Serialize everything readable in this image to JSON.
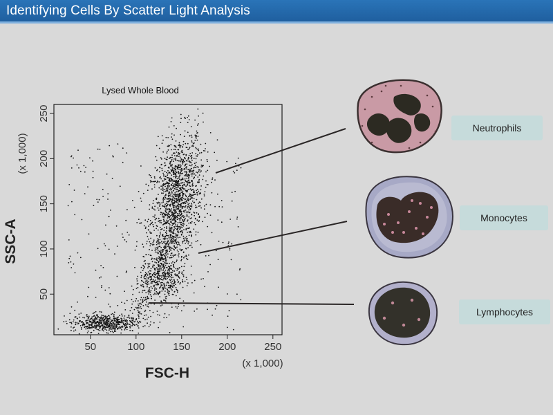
{
  "header": {
    "title": "Identifying Cells By Scatter Light Analysis"
  },
  "chart_data": {
    "type": "scatter",
    "title": "Lysed Whole Blood",
    "xlabel": "FSC-H",
    "ylabel": "SSC-A",
    "x_unit": "(x 1,000)",
    "y_unit": "(x 1,000)",
    "xlim": [
      10,
      260
    ],
    "ylim": [
      5,
      260
    ],
    "xticks": [
      50,
      100,
      150,
      200,
      250
    ],
    "yticks": [
      50,
      100,
      150,
      200,
      250
    ],
    "grid": false,
    "populations": [
      {
        "name": "Neutrophils",
        "center": [
          145,
          155
        ],
        "spread": [
          14,
          35
        ],
        "share": 0.55
      },
      {
        "name": "Monocytes",
        "center": [
          130,
          70
        ],
        "spread": [
          12,
          18
        ],
        "share": 0.15
      },
      {
        "name": "Lymphocytes",
        "center": [
          65,
          18
        ],
        "spread": [
          18,
          5
        ],
        "share": 0.2
      }
    ]
  },
  "cells": [
    {
      "name": "Neutrophils",
      "color": "#c99aa5",
      "nucleus": "#2c2a22"
    },
    {
      "name": "Monocytes",
      "color": "#a7a9c6",
      "nucleus": "#3a2c28"
    },
    {
      "name": "Lymphocytes",
      "color": "#b2b0cb",
      "nucleus": "#33312a"
    }
  ]
}
